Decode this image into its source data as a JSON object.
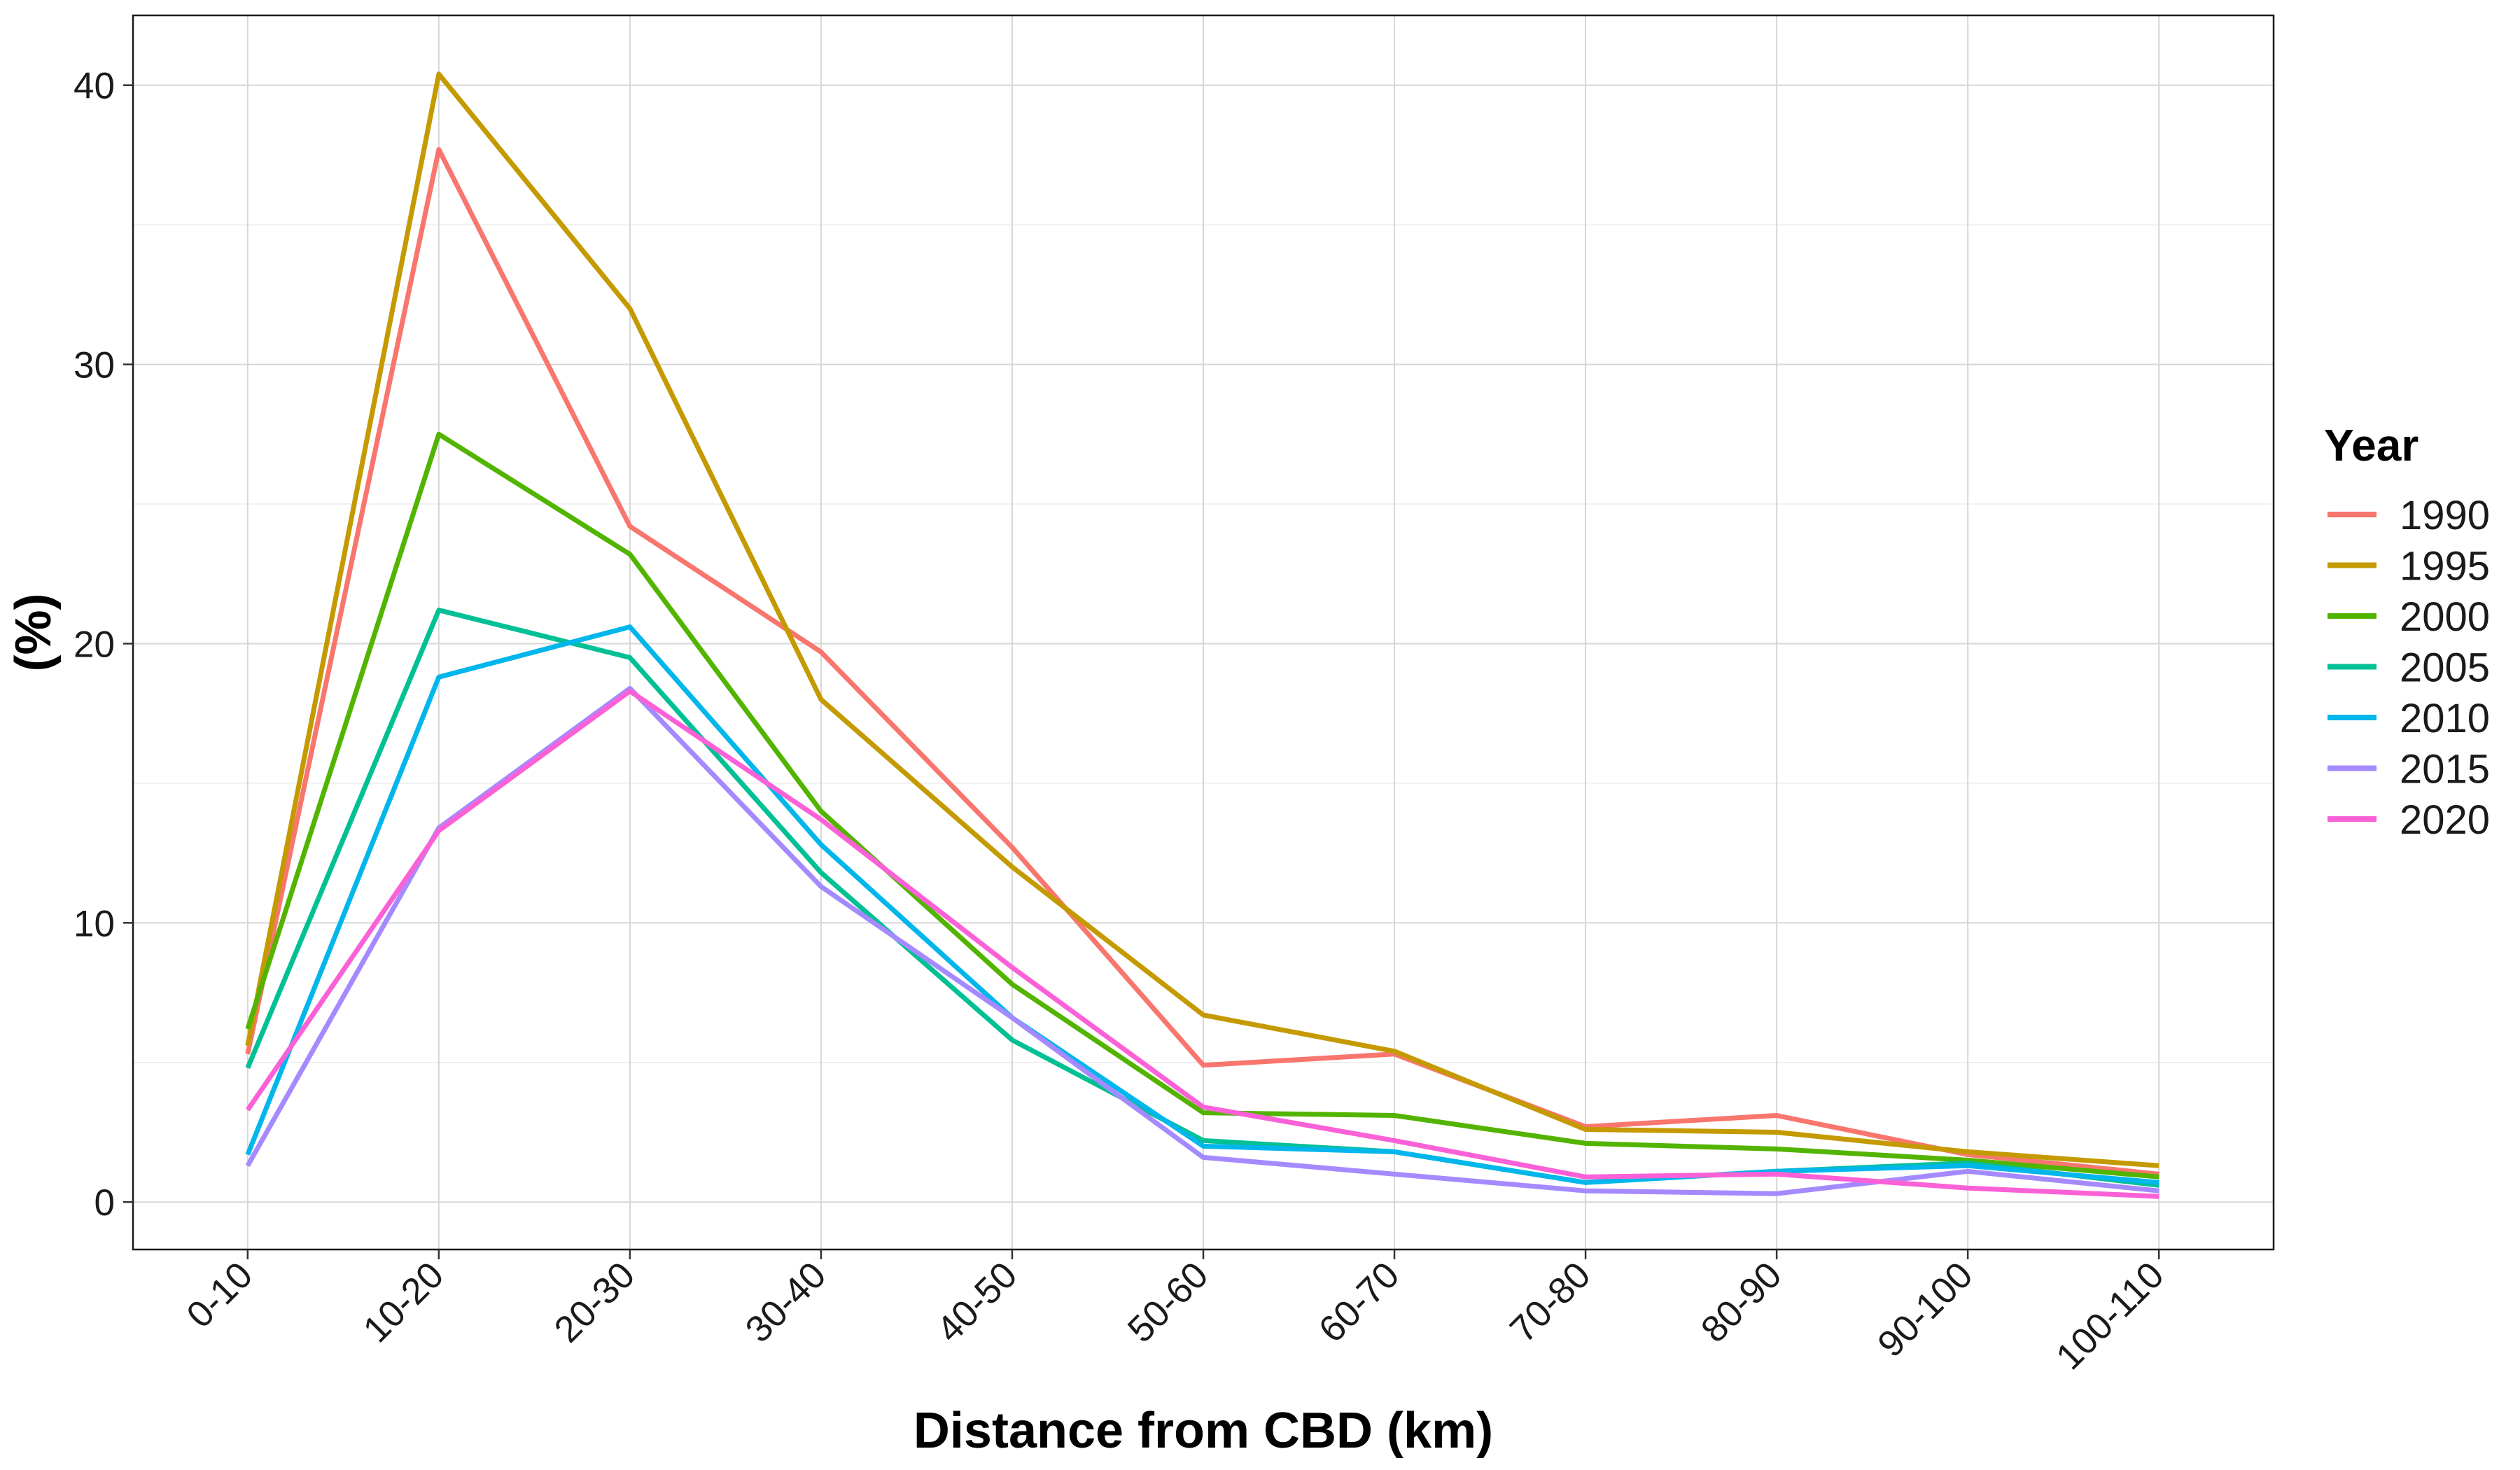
{
  "chart_data": {
    "type": "line",
    "title": "",
    "xlabel": "Distance from CBD (km)",
    "ylabel": "(%)",
    "categories": [
      "0-10",
      "10-20",
      "20-30",
      "30-40",
      "40-50",
      "50-60",
      "60-70",
      "70-80",
      "80-90",
      "90-100",
      "100-110"
    ],
    "ylim": [
      -1.7,
      42.5
    ],
    "yticks": [
      0,
      10,
      20,
      30,
      40
    ],
    "grid": true,
    "legend": {
      "title": "Year",
      "position": "right"
    },
    "series": [
      {
        "name": "1990",
        "color": "#F8766D",
        "values": [
          5.3,
          37.7,
          24.2,
          19.7,
          12.7,
          4.9,
          5.3,
          2.7,
          3.1,
          1.7,
          1.0
        ]
      },
      {
        "name": "1995",
        "color": "#C49A00",
        "values": [
          5.6,
          40.4,
          32.0,
          18.0,
          12.0,
          6.7,
          5.4,
          2.6,
          2.5,
          1.8,
          1.3
        ]
      },
      {
        "name": "2000",
        "color": "#53B400",
        "values": [
          6.2,
          27.5,
          23.2,
          14.0,
          7.8,
          3.2,
          3.1,
          2.1,
          1.9,
          1.5,
          0.9
        ]
      },
      {
        "name": "2005",
        "color": "#00C094",
        "values": [
          4.8,
          21.2,
          19.5,
          11.8,
          5.8,
          2.2,
          1.8,
          0.7,
          1.1,
          1.4,
          0.6
        ]
      },
      {
        "name": "2010",
        "color": "#00B6EB",
        "values": [
          1.7,
          18.8,
          20.6,
          12.8,
          6.6,
          2.0,
          1.8,
          0.7,
          1.1,
          1.3,
          0.7
        ]
      },
      {
        "name": "2015",
        "color": "#A58AFF",
        "values": [
          1.3,
          13.4,
          18.4,
          11.3,
          6.6,
          1.6,
          1.0,
          0.4,
          0.3,
          1.1,
          0.4
        ]
      },
      {
        "name": "2020",
        "color": "#FB61D7",
        "values": [
          3.3,
          13.3,
          18.3,
          13.7,
          8.4,
          3.4,
          2.2,
          0.9,
          1.0,
          0.5,
          0.2
        ]
      }
    ]
  }
}
